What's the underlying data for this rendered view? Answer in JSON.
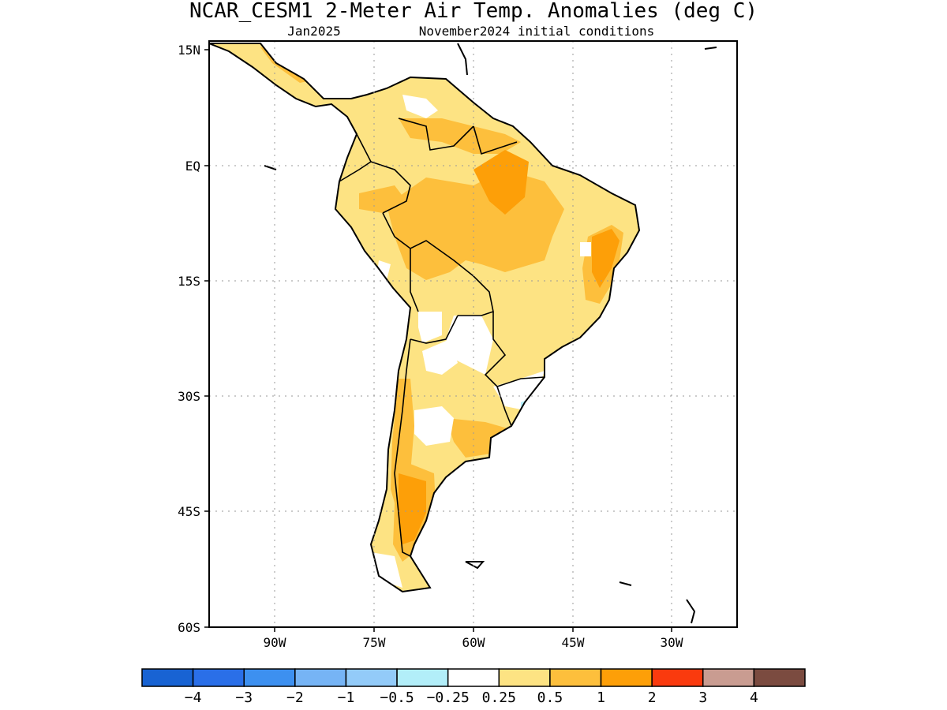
{
  "title": "NCAR_CESM1 2-Meter Air Temp. Anomalies (deg C)",
  "subtitle_left": "Jan2025",
  "subtitle_right": "November2024 initial conditions",
  "lat_labels": [
    "15N",
    "EQ",
    "15S",
    "30S",
    "45S",
    "60S"
  ],
  "lon_labels": [
    "90W",
    "75W",
    "60W",
    "45W",
    "30W"
  ],
  "colorbar": {
    "colors": [
      "#1863d3",
      "#2a6fe8",
      "#3d90f0",
      "#76b4f5",
      "#93cbf9",
      "#b2eef9",
      "#ffffff",
      "#fde383",
      "#fdbf3c",
      "#fd9f08",
      "#fa3a0e",
      "#c99c91",
      "#7b4b40"
    ],
    "labels": [
      "-4",
      "-3",
      "-2",
      "-1",
      "-0.5",
      "-0.25",
      "0.25",
      "0.5",
      "1",
      "2",
      "3",
      "4"
    ]
  },
  "colors": {
    "weak_warm": "#fde383",
    "moderate_warm": "#fdbf3c",
    "strong_warm": "#fd9f08",
    "slight_cool": "#b2eef9",
    "land_outline": "#000000",
    "grid": "#9a9a9a"
  }
}
